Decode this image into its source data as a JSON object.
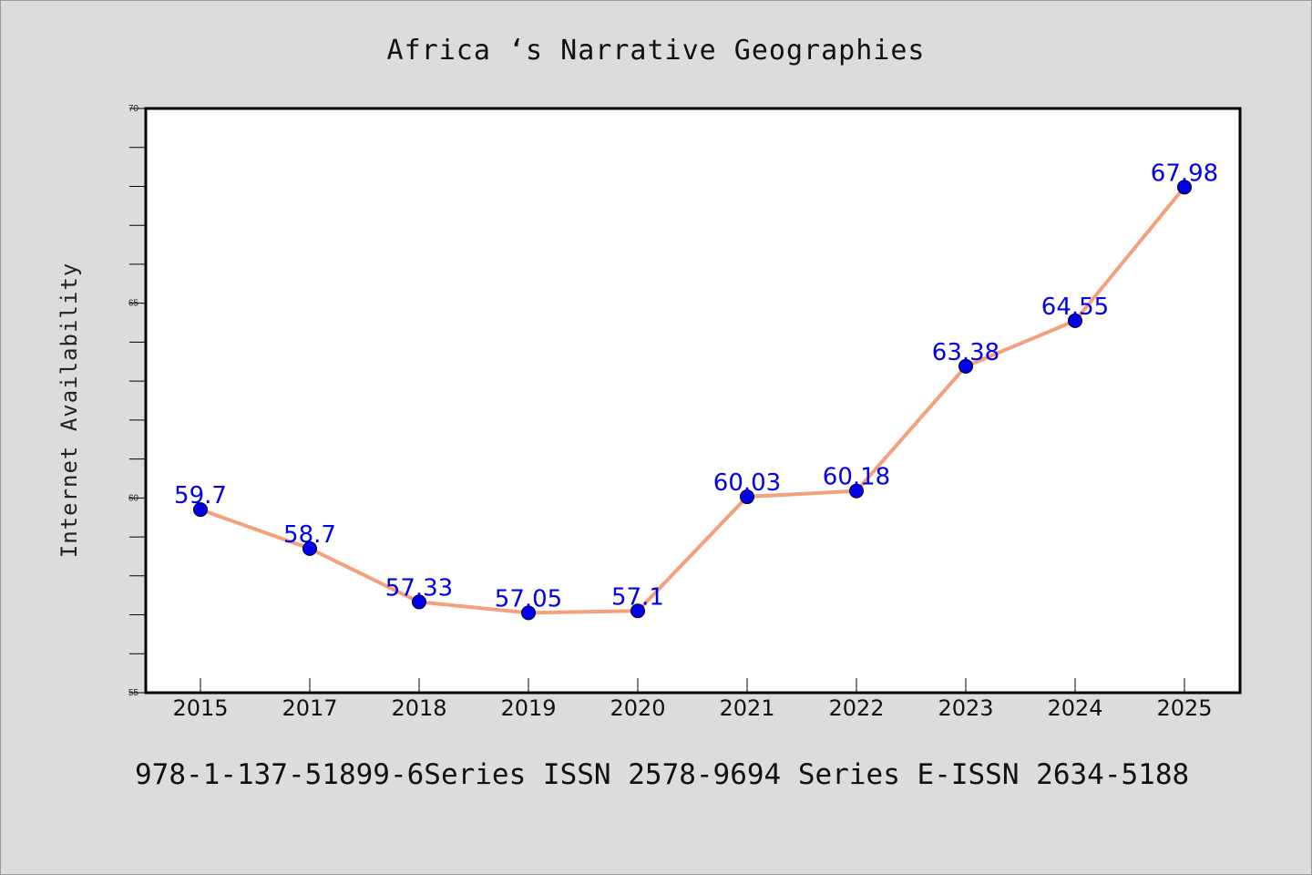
{
  "chart_data": {
    "type": "line",
    "title": "Africa ‘s Narrative Geographies",
    "xlabel": "",
    "ylabel": "Internet Availability",
    "categories": [
      "2015",
      "2017",
      "2018",
      "2019",
      "2020",
      "2021",
      "2022",
      "2023",
      "2024",
      "2025"
    ],
    "series": [
      {
        "values": [
          59.7,
          58.7,
          57.33,
          57.05,
          57.1,
          60.03,
          60.18,
          63.38,
          64.55,
          67.98
        ],
        "data_labels": [
          "59.7",
          "58.7",
          "57.33",
          "57.05",
          "57.1",
          "60.03",
          "60.18",
          "63.38",
          "64.55",
          "67.98"
        ],
        "line_color": "#f4a07c",
        "marker_color": "#0000ee"
      }
    ],
    "ylim": [
      55,
      70
    ],
    "yticks": [
      "55",
      "60",
      "65",
      "70"
    ],
    "grid": false,
    "legend": "none"
  },
  "footer": {
    "text": "978-1-137-51899-6Series ISSN 2578-9694 Series E-ISSN 2634-5188"
  },
  "colors": {
    "background": "#dcdcdc",
    "plot_background": "#ffffff",
    "line": "#f4a07c",
    "marker": "#0000ee",
    "data_label": "#0000ee"
  }
}
